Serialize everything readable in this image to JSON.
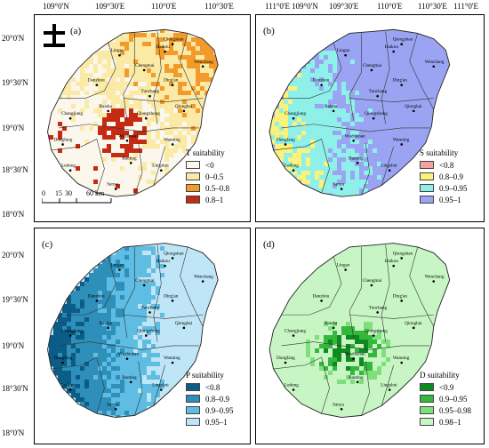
{
  "axes": {
    "lon_ticks": [
      "109°0'N",
      "109°30'E",
      "110°0'E",
      "110°30'E",
      "111°0'E"
    ],
    "lat_ticks": [
      "20°0'N",
      "19°30'N",
      "19°0'N",
      "18°30'N",
      "18°0'N"
    ]
  },
  "panels": [
    {
      "id": "a",
      "label": "(a)",
      "legend_title": "T suitability",
      "classes": [
        "<0",
        "0–0.5",
        "0.5–0.8",
        "0.8–1"
      ],
      "colors": [
        "#fbf7ec",
        "#fbeaa5",
        "#f39b2a",
        "#c42b12"
      ],
      "scale_labels": [
        "0",
        "15",
        "30",
        "60 km"
      ]
    },
    {
      "id": "b",
      "label": "(b)",
      "legend_title": "S suitability",
      "classes": [
        "<0.8",
        "0.8–0.9",
        "0.9–0.95",
        "0.95–1"
      ],
      "colors": [
        "#f6a0a0",
        "#fbf27a",
        "#8ff0ea",
        "#9aa4f2"
      ]
    },
    {
      "id": "c",
      "label": "(c)",
      "legend_title": "P suitability",
      "classes": [
        "<0.8",
        "0.8–0.9",
        "0.9–0.95",
        "0.95–1"
      ],
      "colors": [
        "#0b5c86",
        "#2e8fba",
        "#5fbde3",
        "#bfe6f6"
      ]
    },
    {
      "id": "d",
      "label": "(d)",
      "legend_title": "D suitability",
      "classes": [
        "<0.9",
        "0.9–0.95",
        "0.95–0.98",
        "0.98–1"
      ],
      "colors": [
        "#0f8a1e",
        "#34b83c",
        "#7ee07a",
        "#c8f5c4"
      ]
    }
  ],
  "place_names": [
    "Haikou",
    "Wenchang",
    "Lingao",
    "Chengmai",
    "Ding'an",
    "Danzhou",
    "Tunchang",
    "Qionghai",
    "Baisha",
    "Qiongzhong",
    "Changjiang",
    "Dongfang",
    "Wuzhishan",
    "Wanning",
    "Ledong",
    "Baoting",
    "Lingshui",
    "Sanya",
    "Qiongshan"
  ],
  "north_arrow": "north-arrow"
}
